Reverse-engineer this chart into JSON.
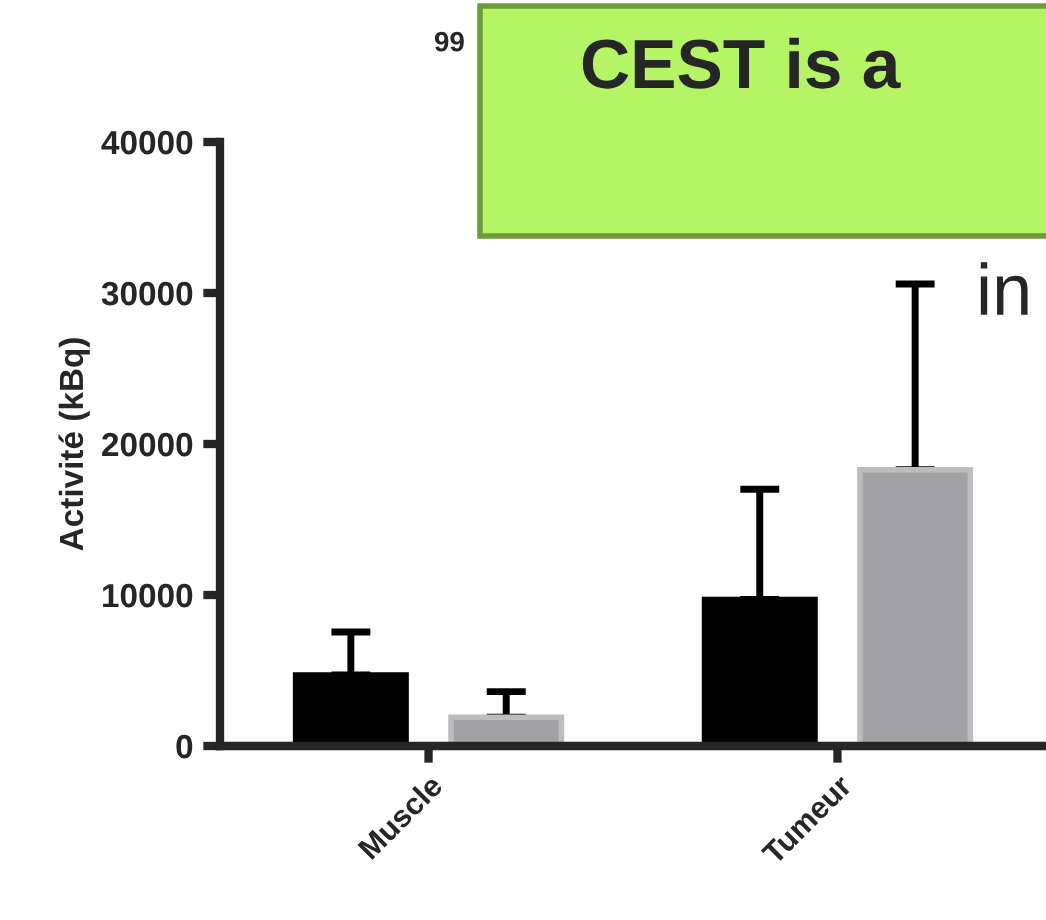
{
  "chart_data": {
    "type": "bar",
    "ylabel": "Activité (kBq)",
    "categories": [
      "Muscle",
      "Tumeur"
    ],
    "series": [
      {
        "color": "#000000",
        "values": [
          4700,
          9700
        ],
        "errors": [
          [
            4700,
            7550
          ],
          [
            9700,
            17000
          ]
        ]
      },
      {
        "color": "#a2a2a6",
        "values": [
          1900,
          18300
        ],
        "errors": [
          [
            1900,
            3600
          ],
          [
            18300,
            30600
          ]
        ]
      }
    ],
    "ylim": [
      0,
      40000
    ],
    "yticks": [
      0,
      10000,
      20000,
      30000,
      40000
    ],
    "annotations": [
      "99",
      "CEST is a",
      "in"
    ]
  }
}
